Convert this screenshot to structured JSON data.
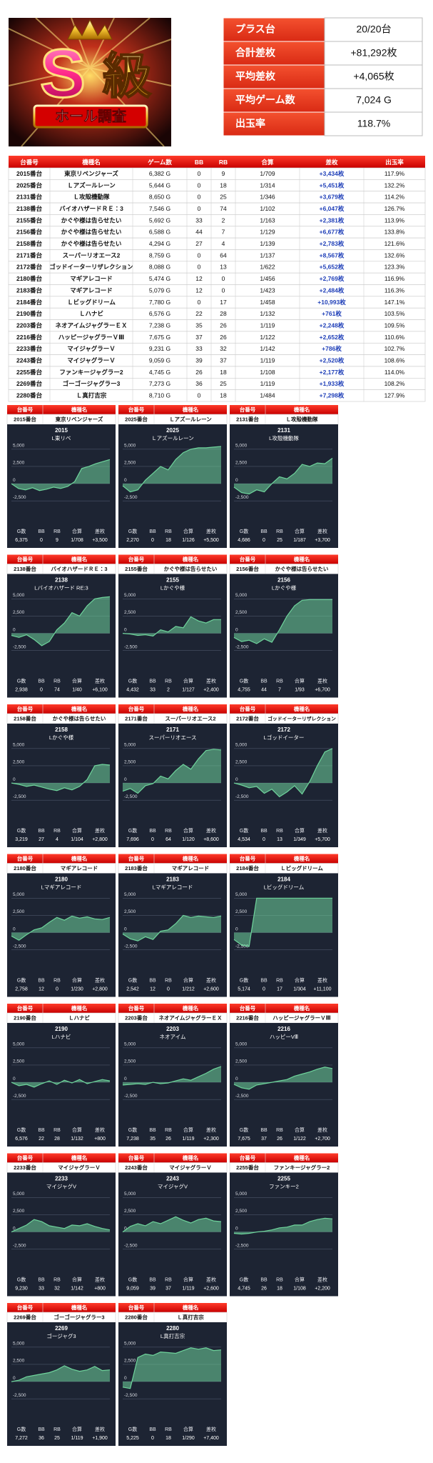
{
  "header": {
    "logo": {
      "mark": "S",
      "grade": "級",
      "caption": "ホール調査"
    },
    "summary": [
      [
        "プラス台",
        "20/20台"
      ],
      [
        "合計差枚",
        "+81,292枚"
      ],
      [
        "平均差枚",
        "+4,065枚"
      ],
      [
        "平均ゲーム数",
        "7,024 G"
      ],
      [
        "出玉率",
        "118.7%"
      ]
    ]
  },
  "table": {
    "columns": [
      "台番号",
      "機種名",
      "ゲーム数",
      "BB",
      "RB",
      "合算",
      "差枚",
      "出玉率"
    ],
    "rows": [
      [
        "2015番台",
        "東京リベンジャーズ",
        "6,382 G",
        "0",
        "9",
        "1/709",
        "+3,434枚",
        "117.9%"
      ],
      [
        "2025番台",
        "Ｌアズールレーン",
        "5,644 G",
        "0",
        "18",
        "1/314",
        "+5,451枚",
        "132.2%"
      ],
      [
        "2131番台",
        "Ｌ攻殻機動隊",
        "8,650 G",
        "0",
        "25",
        "1/346",
        "+3,679枚",
        "114.2%"
      ],
      [
        "2138番台",
        "バイオハザードＲＥ：3",
        "7,546 G",
        "0",
        "74",
        "1/102",
        "+6,047枚",
        "126.7%"
      ],
      [
        "2155番台",
        "かぐや様は告らせたい",
        "5,692 G",
        "33",
        "2",
        "1/163",
        "+2,381枚",
        "113.9%"
      ],
      [
        "2156番台",
        "かぐや様は告らせたい",
        "6,588 G",
        "44",
        "7",
        "1/129",
        "+6,677枚",
        "133.8%"
      ],
      [
        "2158番台",
        "かぐや様は告らせたい",
        "4,294 G",
        "27",
        "4",
        "1/139",
        "+2,783枚",
        "121.6%"
      ],
      [
        "2171番台",
        "スーパーリオエース2",
        "8,759 G",
        "0",
        "64",
        "1/137",
        "+8,567枚",
        "132.6%"
      ],
      [
        "2172番台",
        "ゴッドイーターリザレクション",
        "8,088 G",
        "0",
        "13",
        "1/622",
        "+5,652枚",
        "123.3%"
      ],
      [
        "2180番台",
        "マギアレコード",
        "5,474 G",
        "12",
        "0",
        "1/456",
        "+2,769枚",
        "116.9%"
      ],
      [
        "2183番台",
        "マギアレコード",
        "5,079 G",
        "12",
        "0",
        "1/423",
        "+2,484枚",
        "116.3%"
      ],
      [
        "2184番台",
        "Ｌビッグドリーム",
        "7,780 G",
        "0",
        "17",
        "1/458",
        "+10,993枚",
        "147.1%"
      ],
      [
        "2190番台",
        "Ｌハナビ",
        "6,576 G",
        "22",
        "28",
        "1/132",
        "+761枚",
        "103.5%"
      ],
      [
        "2203番台",
        "ネオアイムジャグラーＥＸ",
        "7,238 G",
        "35",
        "26",
        "1/119",
        "+2,248枚",
        "109.5%"
      ],
      [
        "2216番台",
        "ハッピージャグラーＶⅢ",
        "7,675 G",
        "37",
        "26",
        "1/122",
        "+2,652枚",
        "110.6%"
      ],
      [
        "2233番台",
        "マイジャグラーＶ",
        "9,231 G",
        "33",
        "32",
        "1/142",
        "+786枚",
        "102.7%"
      ],
      [
        "2243番台",
        "マイジャグラーＶ",
        "9,059 G",
        "39",
        "37",
        "1/119",
        "+2,520枚",
        "108.6%"
      ],
      [
        "2255番台",
        "ファンキージャグラー2",
        "4,745 G",
        "26",
        "18",
        "1/108",
        "+2,177枚",
        "114.0%"
      ],
      [
        "2269番台",
        "ゴーゴージャグラー3",
        "7,273 G",
        "36",
        "25",
        "1/119",
        "+1,933枚",
        "108.2%"
      ],
      [
        "2280番台",
        "Ｌ真打吉宗",
        "8,710 G",
        "0",
        "18",
        "1/484",
        "+7,298枚",
        "127.9%"
      ]
    ]
  },
  "card_labels": {
    "unit": "台番号",
    "model": "機種名",
    "stats": [
      "G数",
      "BB",
      "RB",
      "合算",
      "差枚"
    ]
  },
  "chart_data": [
    {
      "type": "line",
      "unit": "2015番台",
      "model": "東京リベンジャーズ",
      "title": "2015",
      "subtitle": "L東リベ",
      "values": [
        0,
        -700,
        -900,
        -600,
        -1000,
        -800,
        -500,
        -700,
        -400,
        300,
        2200,
        2500,
        2900,
        3200,
        3500
      ],
      "ylim": [
        -3000,
        5500
      ],
      "yticks": [
        {
          "value": 5000,
          "label": "5,000"
        },
        {
          "value": 2500,
          "label": "2,500"
        },
        0,
        {
          "value": -2500,
          "label": "-2,500"
        }
      ],
      "color": "#6fd49c",
      "stats": [
        "6,375",
        "0",
        "9",
        "1/708",
        "+3,500"
      ]
    },
    {
      "type": "line",
      "unit": "2025番台",
      "model": "Ｌアズールレーン",
      "title": "2025",
      "subtitle": "Ｌアズールレーン",
      "values": [
        -300,
        -1200,
        -900,
        500,
        1500,
        2500,
        2000,
        3500,
        4500,
        5000,
        5200,
        5200,
        5300,
        5400
      ],
      "ylim": [
        -3000,
        5500
      ],
      "yticks": [
        {
          "value": 5000,
          "label": "5,000"
        },
        {
          "value": 2500,
          "label": "2,500"
        },
        0,
        {
          "value": -2500,
          "label": "-2,500"
        }
      ],
      "color": "#6fd49c",
      "stats": [
        "2,270",
        "0",
        "18",
        "1/126",
        "+5,500"
      ]
    },
    {
      "type": "line",
      "unit": "2131番台",
      "model": "Ｌ攻殻機動隊",
      "title": "2131",
      "subtitle": "L攻殻機動隊",
      "values": [
        -500,
        -1300,
        -1500,
        -900,
        -1200,
        0,
        1000,
        700,
        1500,
        2800,
        2500,
        3000,
        2900,
        3700
      ],
      "ylim": [
        -3000,
        5500
      ],
      "yticks": [
        {
          "value": 5000,
          "label": "5,000"
        },
        {
          "value": 2500,
          "label": "2,500"
        },
        0,
        {
          "value": -2500,
          "label": "-2,500"
        }
      ],
      "color": "#6fd49c",
      "stats": [
        "4,686",
        "0",
        "25",
        "1/187",
        "+3,700"
      ]
    },
    {
      "type": "line",
      "unit": "2138番台",
      "model": "バイオハザードＲＥ：3",
      "title": "2138",
      "subtitle": "Lバイオハザード RE:3",
      "values": [
        -300,
        -600,
        -200,
        -900,
        -1800,
        -1200,
        500,
        1500,
        3000,
        2500,
        4000,
        5000,
        5200,
        5300
      ],
      "ylim": [
        -3000,
        5500
      ],
      "yticks": [
        {
          "value": 5000,
          "label": "5,000"
        },
        {
          "value": 2500,
          "label": "2,500"
        },
        0,
        {
          "value": -2500,
          "label": "-2,500"
        }
      ],
      "color": "#6fd49c",
      "stats": [
        "2,938",
        "0",
        "74",
        "1/40",
        "+6,100"
      ]
    },
    {
      "type": "line",
      "unit": "2155番台",
      "model": "かぐや様は告らせたい",
      "title": "2155",
      "subtitle": "Lかぐや様",
      "values": [
        0,
        -100,
        -300,
        -200,
        -400,
        500,
        200,
        1000,
        800,
        2400,
        1800,
        1500,
        2000,
        2000
      ],
      "ylim": [
        -3000,
        5500
      ],
      "yticks": [
        {
          "value": 5000,
          "label": "5,000"
        },
        {
          "value": 2500,
          "label": "2,500"
        },
        0,
        {
          "value": -2500,
          "label": "-2,500"
        }
      ],
      "color": "#6fd49c",
      "stats": [
        "4,432",
        "33",
        "2",
        "1/127",
        "+2,400"
      ]
    },
    {
      "type": "line",
      "unit": "2156番台",
      "model": "かぐや様は告らせたい",
      "title": "2156",
      "subtitle": "Lかぐや様",
      "values": [
        -600,
        -1200,
        -1000,
        -1500,
        -800,
        -1300,
        500,
        2500,
        4000,
        4800,
        4900,
        4900,
        4900,
        4900
      ],
      "ylim": [
        -3000,
        5500
      ],
      "yticks": [
        {
          "value": 5000,
          "label": "5,000"
        },
        {
          "value": 2500,
          "label": "2,500"
        },
        0,
        {
          "value": -2500,
          "label": "-2,500"
        }
      ],
      "color": "#6fd49c",
      "stats": [
        "4,755",
        "44",
        "7",
        "1/93",
        "+6,700"
      ]
    },
    {
      "type": "line",
      "unit": "2158番台",
      "model": "かぐや様は告らせたい",
      "title": "2158",
      "subtitle": "Lかぐや様",
      "values": [
        0,
        -200,
        -500,
        -300,
        -600,
        -900,
        -1100,
        -700,
        -1000,
        -500,
        500,
        2500,
        2700,
        2600
      ],
      "ylim": [
        -3000,
        5500
      ],
      "yticks": [
        {
          "value": 5000,
          "label": "5,000"
        },
        {
          "value": 2500,
          "label": "2,500"
        },
        0,
        {
          "value": -2500,
          "label": "-2,500"
        }
      ],
      "color": "#6fd49c",
      "stats": [
        "3,219",
        "27",
        "4",
        "1/104",
        "+2,800"
      ]
    },
    {
      "type": "line",
      "unit": "2171番台",
      "model": "スーパーリオエース2",
      "title": "2171",
      "subtitle": "スーパーリオエース",
      "values": [
        -1200,
        -800,
        -1500,
        -400,
        -100,
        1000,
        600,
        1800,
        2700,
        2000,
        3500,
        4700,
        4900,
        4800
      ],
      "ylim": [
        -3000,
        5500
      ],
      "yticks": [
        {
          "value": 5000,
          "label": "5,000"
        },
        {
          "value": 2500,
          "label": "2,500"
        },
        0,
        {
          "value": -2500,
          "label": "-2,500"
        }
      ],
      "color": "#6fd49c",
      "stats": [
        "7,696",
        "0",
        "64",
        "1/120",
        "+8,600"
      ]
    },
    {
      "type": "line",
      "unit": "2172番台",
      "model": "ゴッドイーターリザレクション",
      "title": "2172",
      "subtitle": "Lゴッドイーター",
      "values": [
        0,
        -300,
        -700,
        -500,
        -1500,
        -900,
        -2000,
        -1300,
        -400,
        -1600,
        200,
        2500,
        4500,
        5000
      ],
      "ylim": [
        -3000,
        5500
      ],
      "yticks": [
        {
          "value": 5000,
          "label": "5,000"
        },
        {
          "value": 2500,
          "label": "2,500"
        },
        0,
        {
          "value": -2500,
          "label": "-2,500"
        }
      ],
      "color": "#6fd49c",
      "stats": [
        "4,534",
        "0",
        "13",
        "1/349",
        "+5,700"
      ]
    },
    {
      "type": "line",
      "unit": "2180番台",
      "model": "マギアレコード",
      "title": "2180",
      "subtitle": "Lマギアレコード",
      "values": [
        -500,
        -1100,
        -300,
        400,
        700,
        1500,
        2200,
        1800,
        2400,
        2100,
        2300,
        2000,
        1900,
        2200
      ],
      "ylim": [
        -3000,
        5500
      ],
      "yticks": [
        {
          "value": 5000,
          "label": "5,000"
        },
        {
          "value": 2500,
          "label": "2,500"
        },
        0,
        {
          "value": -2500,
          "label": "-2,500"
        }
      ],
      "color": "#6fd49c",
      "stats": [
        "2,758",
        "12",
        "0",
        "1/230",
        "+2,800"
      ]
    },
    {
      "type": "line",
      "unit": "2183番台",
      "model": "マギアレコード",
      "title": "2183",
      "subtitle": "Lマギアレコード",
      "values": [
        -200,
        -900,
        -1200,
        -600,
        -1000,
        200,
        400,
        1300,
        2500,
        2200,
        2400,
        2300,
        2200,
        2400
      ],
      "ylim": [
        -3000,
        5500
      ],
      "yticks": [
        {
          "value": 5000,
          "label": "5,000"
        },
        {
          "value": 2500,
          "label": "2,500"
        },
        0,
        {
          "value": -2500,
          "label": "-2,500"
        }
      ],
      "color": "#6fd49c",
      "stats": [
        "2,542",
        "12",
        "0",
        "1/212",
        "+2,600"
      ]
    },
    {
      "type": "line",
      "unit": "2184番台",
      "model": "Ｌビッグドリーム",
      "title": "2184",
      "subtitle": "Lビッグドリーム",
      "values": [
        -1000,
        -1800,
        -2000,
        5000,
        5000,
        5000,
        5000,
        5000,
        5000,
        5000,
        5000,
        5000,
        5000,
        5000
      ],
      "ylim": [
        -3000,
        5500
      ],
      "yticks": [
        {
          "value": 5000,
          "label": "5,000"
        },
        {
          "value": 2500,
          "label": "2,500"
        },
        0,
        {
          "value": -2500,
          "label": "-2,500"
        }
      ],
      "color": "#6fd49c",
      "stats": [
        "5,174",
        "0",
        "17",
        "1/304",
        "+11,100"
      ]
    },
    {
      "type": "line",
      "unit": "2190番台",
      "model": "Ｌハナビ",
      "title": "2190",
      "subtitle": "Lハナビ",
      "values": [
        0,
        -500,
        -300,
        -700,
        -200,
        200,
        -300,
        300,
        -100,
        400,
        -200,
        100,
        400,
        200
      ],
      "ylim": [
        -3000,
        5500
      ],
      "yticks": [
        {
          "value": 5000,
          "label": "5,000"
        },
        {
          "value": 2500,
          "label": "2,500"
        },
        0,
        {
          "value": -2500,
          "label": "-2,500"
        }
      ],
      "color": "#6fd49c",
      "stats": [
        "6,576",
        "22",
        "28",
        "1/132",
        "+800"
      ]
    },
    {
      "type": "line",
      "unit": "2203番台",
      "model": "ネオアイムジャグラーＥＸ",
      "title": "2203",
      "subtitle": "ネオアイム",
      "values": [
        -400,
        -300,
        -200,
        -300,
        0,
        -200,
        -100,
        200,
        500,
        300,
        800,
        1300,
        1900,
        2300
      ],
      "ylim": [
        -3000,
        5500
      ],
      "yticks": [
        {
          "value": 5000,
          "label": "5,000"
        },
        {
          "value": 2500,
          "label": "2,500"
        },
        0,
        {
          "value": -2500,
          "label": "-2,500"
        }
      ],
      "color": "#6fd49c",
      "stats": [
        "7,238",
        "35",
        "26",
        "1/119",
        "+2,300"
      ]
    },
    {
      "type": "line",
      "unit": "2216番台",
      "model": "ハッピージャグラーＶⅢ",
      "title": "2216",
      "subtitle": "ハッピーVⅢ",
      "values": [
        -300,
        -800,
        -1000,
        -400,
        -200,
        0,
        200,
        400,
        900,
        1200,
        1500,
        1900,
        2200,
        2000
      ],
      "ylim": [
        -3000,
        5500
      ],
      "yticks": [
        {
          "value": 5000,
          "label": "5,000"
        },
        {
          "value": 2500,
          "label": "2,500"
        },
        0,
        {
          "value": -2500,
          "label": "-2,500"
        }
      ],
      "color": "#6fd49c",
      "stats": [
        "7,675",
        "37",
        "26",
        "1/122",
        "+2,700"
      ]
    },
    {
      "type": "line",
      "unit": "2233番台",
      "model": "マイジャグラーＶ",
      "title": "2233",
      "subtitle": "マイジャグV",
      "values": [
        0,
        500,
        1000,
        1800,
        1500,
        900,
        700,
        500,
        1000,
        900,
        1200,
        800,
        500,
        300
      ],
      "ylim": [
        -3000,
        5500
      ],
      "yticks": [
        {
          "value": 5000,
          "label": "5,000"
        },
        {
          "value": 2500,
          "label": "2,500"
        },
        0,
        {
          "value": -2500,
          "label": "-2,500"
        }
      ],
      "color": "#6fd49c",
      "stats": [
        "9,230",
        "33",
        "32",
        "1/142",
        "+800"
      ]
    },
    {
      "type": "line",
      "unit": "2243番台",
      "model": "マイジャグラーＶ",
      "title": "2243",
      "subtitle": "マイジャグV",
      "values": [
        0,
        800,
        1200,
        900,
        1500,
        1200,
        1700,
        2200,
        1700,
        1300,
        1800,
        2000,
        1600,
        1500
      ],
      "ylim": [
        -3000,
        5500
      ],
      "yticks": [
        {
          "value": 5000,
          "label": "5,000"
        },
        {
          "value": 2500,
          "label": "2,500"
        },
        0,
        {
          "value": -2500,
          "label": "-2,500"
        }
      ],
      "color": "#6fd49c",
      "stats": [
        "9,059",
        "39",
        "37",
        "1/119",
        "+2,600"
      ]
    },
    {
      "type": "line",
      "unit": "2255番台",
      "model": "ファンキージャグラー2",
      "title": "2255",
      "subtitle": "ファンキー2",
      "values": [
        -200,
        -300,
        -200,
        0,
        100,
        300,
        600,
        700,
        1000,
        1000,
        1500,
        1800,
        2000,
        1900
      ],
      "ylim": [
        -3000,
        5500
      ],
      "yticks": [
        {
          "value": 5000,
          "label": "5,000"
        },
        {
          "value": 2500,
          "label": "2,500"
        },
        0,
        {
          "value": -2500,
          "label": "-2,500"
        }
      ],
      "color": "#6fd49c",
      "stats": [
        "4,745",
        "26",
        "18",
        "1/108",
        "+2,200"
      ]
    },
    {
      "type": "line",
      "unit": "2269番台",
      "model": "ゴーゴージャグラー3",
      "title": "2269",
      "subtitle": "ゴージャグ3",
      "values": [
        0,
        200,
        700,
        900,
        1100,
        1300,
        1700,
        2300,
        1800,
        1500,
        1700,
        2200,
        1600,
        1700
      ],
      "ylim": [
        -3000,
        5500
      ],
      "yticks": [
        {
          "value": 5000,
          "label": "5,000"
        },
        {
          "value": 2500,
          "label": "2,500"
        },
        0,
        {
          "value": -2500,
          "label": "-2,500"
        }
      ],
      "color": "#6fd49c",
      "stats": [
        "7,272",
        "36",
        "25",
        "1/119",
        "+1,900"
      ]
    },
    {
      "type": "line",
      "unit": "2280番台",
      "model": "Ｌ真打吉宗",
      "title": "2280",
      "subtitle": "L真打吉宗",
      "values": [
        -800,
        -1000,
        3500,
        4000,
        3800,
        4300,
        4200,
        4100,
        4500,
        4900,
        4700,
        4900,
        4500,
        4600
      ],
      "ylim": [
        -3000,
        5500
      ],
      "yticks": [
        {
          "value": 5000,
          "label": "5,000"
        },
        {
          "value": 2500,
          "label": "2,500"
        },
        0,
        {
          "value": -2500,
          "label": "-2,500"
        }
      ],
      "color": "#6fd49c",
      "stats": [
        "5,225",
        "0",
        "18",
        "1/290",
        "+7,400"
      ]
    }
  ]
}
